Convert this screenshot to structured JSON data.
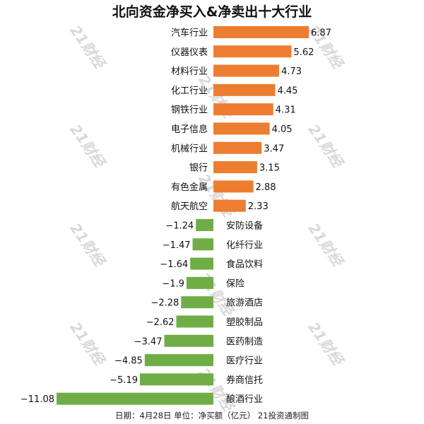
{
  "chart_data": {
    "type": "bar",
    "orientation": "horizontal",
    "title": "北向资金净买入&净卖出十大行业",
    "categories": [
      "汽车行业",
      "仪器仪表",
      "材料行业",
      "化工行业",
      "钢铁行业",
      "电子信息",
      "机械行业",
      "银行",
      "有色金属",
      "航天航空",
      "安防设备",
      "化纤行业",
      "食品饮料",
      "保险",
      "旅游酒店",
      "塑胶制品",
      "医药制造",
      "医疗行业",
      "券商信托",
      "酿酒行业"
    ],
    "values": [
      6.87,
      5.62,
      4.73,
      4.45,
      4.31,
      4.05,
      3.47,
      3.15,
      2.88,
      2.33,
      -1.24,
      -1.47,
      -1.64,
      -1.9,
      -2.28,
      -2.62,
      -3.47,
      -4.85,
      -5.19,
      -11.08
    ],
    "value_labels": [
      "6.87",
      "5.62",
      "4.73",
      "4.45",
      "4.31",
      "4.05",
      "3.47",
      "3.15",
      "2.88",
      "2.33",
      "−1.24",
      "−1.47",
      "−1.64",
      "−1.9",
      "−2.28",
      "−2.62",
      "−3.47",
      "−4.85",
      "−5.19",
      "−11.08"
    ],
    "xlim": [
      -11.08,
      6.87
    ],
    "colors": {
      "positive": "#ED7D31",
      "negative": "#70AD47"
    },
    "grid": false,
    "legend": "none",
    "footer": "日期：4月28日  单位：净买额（亿元）  21投资通制图",
    "watermark": "21财经"
  }
}
